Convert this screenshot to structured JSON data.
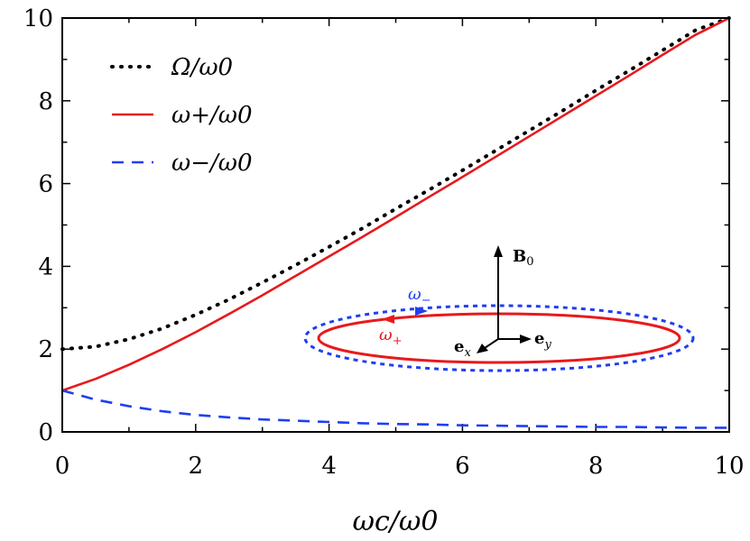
{
  "chart_data": {
    "type": "line",
    "title": "",
    "xlabel": "ωc/ω0",
    "ylabel": "",
    "xlim": [
      0,
      10
    ],
    "ylim": [
      0,
      10
    ],
    "xticks": [
      0,
      2,
      4,
      6,
      8,
      10
    ],
    "yticks": [
      0,
      2,
      4,
      6,
      8,
      10
    ],
    "x": [
      0,
      0.5,
      1,
      1.5,
      2,
      2.5,
      3,
      3.5,
      4,
      4.5,
      5,
      5.5,
      6,
      6.5,
      7,
      7.5,
      8,
      8.5,
      9,
      9.5,
      10
    ],
    "series": [
      {
        "name": "Ω/ω0",
        "style": "dotted",
        "color": "#000000",
        "values": [
          2.0,
          2.06,
          2.24,
          2.5,
          2.83,
          3.2,
          3.61,
          4.03,
          4.47,
          4.92,
          5.39,
          5.85,
          6.32,
          6.8,
          7.28,
          7.76,
          8.25,
          8.73,
          9.22,
          9.71,
          10.2
        ]
      },
      {
        "name": "ω+/ω0",
        "style": "solid",
        "color": "#e8191c",
        "values": [
          1.0,
          1.28,
          1.62,
          2.0,
          2.41,
          2.85,
          3.3,
          3.77,
          4.24,
          4.71,
          5.19,
          5.68,
          6.16,
          6.65,
          7.14,
          7.63,
          8.12,
          8.61,
          9.11,
          9.6,
          10.1
        ]
      },
      {
        "name": "ω−/ω0",
        "style": "dashed",
        "color": "#1f3ff0",
        "values": [
          1.0,
          0.78,
          0.62,
          0.5,
          0.41,
          0.35,
          0.3,
          0.27,
          0.24,
          0.21,
          0.19,
          0.18,
          0.16,
          0.15,
          0.14,
          0.13,
          0.12,
          0.12,
          0.11,
          0.1,
          0.1
        ]
      }
    ],
    "legend": "top-left",
    "grid": false
  },
  "inset": {
    "field_label": "B",
    "field_sub": "0",
    "ex_label": "e",
    "ex_sub": "x",
    "ey_label": "e",
    "ey_sub": "y",
    "omega_minus_label": "ω",
    "omega_minus_sub": "−",
    "omega_plus_label": "ω",
    "omega_plus_sub": "+",
    "omega_minus_color": "#1f3ff0",
    "omega_plus_color": "#e8191c"
  }
}
